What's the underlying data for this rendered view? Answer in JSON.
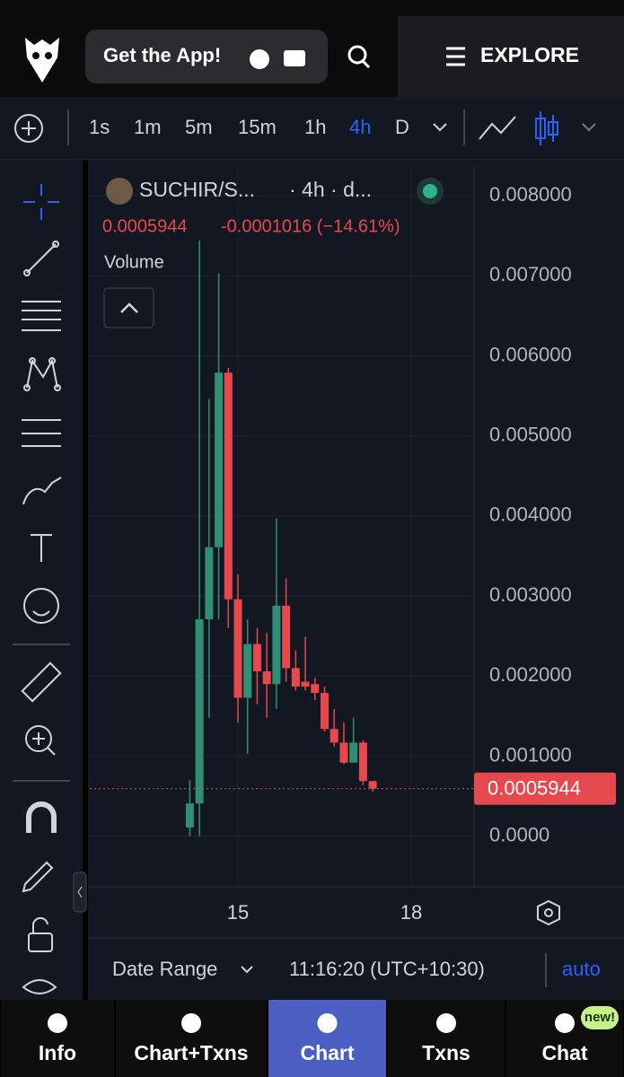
{
  "header": {
    "cta": "Get the App!",
    "explore": "EXPLORE"
  },
  "toolbar": {
    "intervals": [
      "1s",
      "1m",
      "5m",
      "15m",
      "1h",
      "4h",
      "D"
    ],
    "active": 5
  },
  "chart_data": {
    "type": "candlestick",
    "title": "SUCHIR/S...",
    "subtitle": "· 4h · d...",
    "price": "0.0005944",
    "change": "-0.0001016 (−14.61%)",
    "volume_label": "Volume",
    "x": [
      14.1667,
      14.3333,
      14.5,
      14.6667,
      14.8333,
      15,
      15.1667,
      15.3333,
      15.5,
      15.6667,
      15.8333,
      16,
      16.1667,
      16.3333,
      16.5,
      16.6667,
      16.8333,
      17,
      17.1667,
      17.3333
    ],
    "open": [
      0.00011,
      0.00041,
      0.00271,
      0.00361,
      0.00579,
      0.00296,
      0.00173,
      0.0024,
      0.00206,
      0.0019,
      0.00288,
      0.0021,
      0.00193,
      0.0019,
      0.00179,
      0.00134,
      0.00117,
      0.00092,
      0.00117,
      0.00069
    ],
    "high": [
      0.0007,
      0.00744,
      0.00546,
      0.00703,
      0.00585,
      0.00327,
      0.00271,
      0.0026,
      0.00254,
      0.00397,
      0.00322,
      0.00232,
      0.00249,
      0.00198,
      0.00187,
      0.00159,
      0.00142,
      0.00148,
      0.0012,
      0.00069
    ],
    "low": [
      0,
      0,
      0.00148,
      0.00271,
      0.0026,
      0.00142,
      0.00103,
      0.00165,
      0.00148,
      0.00159,
      0.00193,
      0.00182,
      0.00182,
      0.0017,
      0.00131,
      0.00112,
      0.0009,
      0.00092,
      0.00064,
      0.00056
    ],
    "close": [
      0.00041,
      0.00271,
      0.00361,
      0.00579,
      0.00296,
      0.00173,
      0.0024,
      0.00206,
      0.0019,
      0.00288,
      0.0021,
      0.00187,
      0.00187,
      0.00179,
      0.00134,
      0.00117,
      0.00092,
      0.00117,
      0.00069,
      0.0005944
    ],
    "up_color": "#2f8f72",
    "down_color": "#e5484d",
    "xlim": [
      12.435,
      19.088
    ],
    "xticks": [
      15,
      18
    ],
    "ylim": [
      -0.00063,
      0.00837
    ],
    "yticks": [
      {
        "value": 0.008,
        "label": "0.008000"
      },
      {
        "value": 0.007,
        "label": "0.007000"
      },
      {
        "value": 0.006,
        "label": "0.006000"
      },
      {
        "value": 0.005,
        "label": "0.005000"
      },
      {
        "value": 0.004,
        "label": "0.004000"
      },
      {
        "value": 0.003,
        "label": "0.003000"
      },
      {
        "value": 0.002,
        "label": "0.002000"
      },
      {
        "value": 0.001,
        "label": "0.001000"
      },
      {
        "value": 0,
        "label": "0.0000"
      }
    ],
    "last_price": {
      "value": 0.0005944,
      "label": "0.0005944"
    },
    "grid": true
  },
  "footer": {
    "date_range": "Date Range",
    "time": "11:16:20 (UTC+10:30)",
    "scale": "auto"
  },
  "nav": {
    "items": [
      "Info",
      "Chart+Txns",
      "Chart",
      "Txns",
      "Chat"
    ],
    "badge": "new!",
    "active": 2
  }
}
